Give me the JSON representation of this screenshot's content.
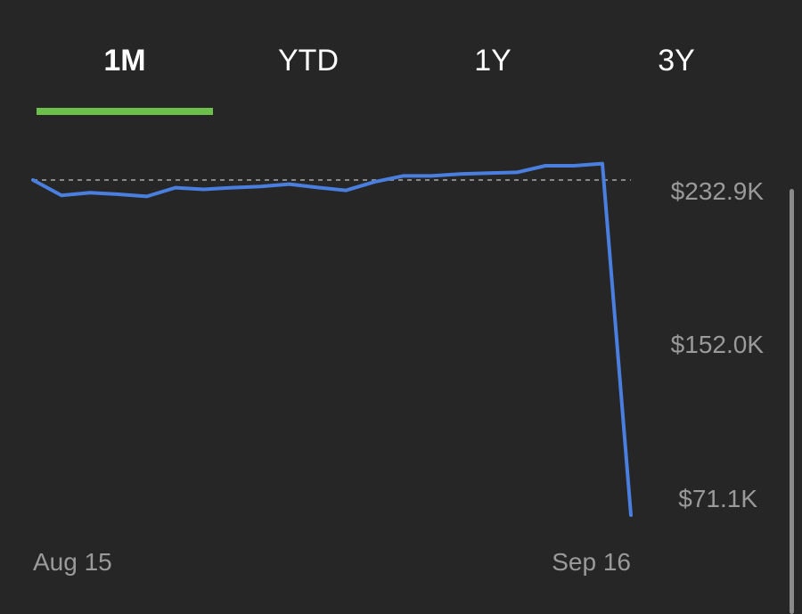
{
  "tabs": [
    {
      "label": "1M",
      "active": true
    },
    {
      "label": "YTD",
      "active": false
    },
    {
      "label": "1Y",
      "active": false
    },
    {
      "label": "3Y",
      "active": false
    }
  ],
  "colors": {
    "background": "#262626",
    "line": "#4a7fe0",
    "active_underline": "#6cc04a",
    "axis_text": "#9a9a9a",
    "reference_line": "#888888"
  },
  "chart_data": {
    "type": "line",
    "x_start_label": "Aug 15",
    "x_end_label": "Sep 16",
    "y_tick_labels": [
      "$232.9K",
      "$152.0K",
      "$71.1K"
    ],
    "y_ticks": [
      232900,
      152000,
      71100
    ],
    "reference_value": 232900,
    "values": [
      232900,
      225500,
      226800,
      226000,
      225000,
      229200,
      228400,
      229200,
      229800,
      230900,
      229300,
      227900,
      232000,
      234900,
      234900,
      235800,
      236200,
      236600,
      239800,
      239800,
      240800,
      71100
    ]
  }
}
